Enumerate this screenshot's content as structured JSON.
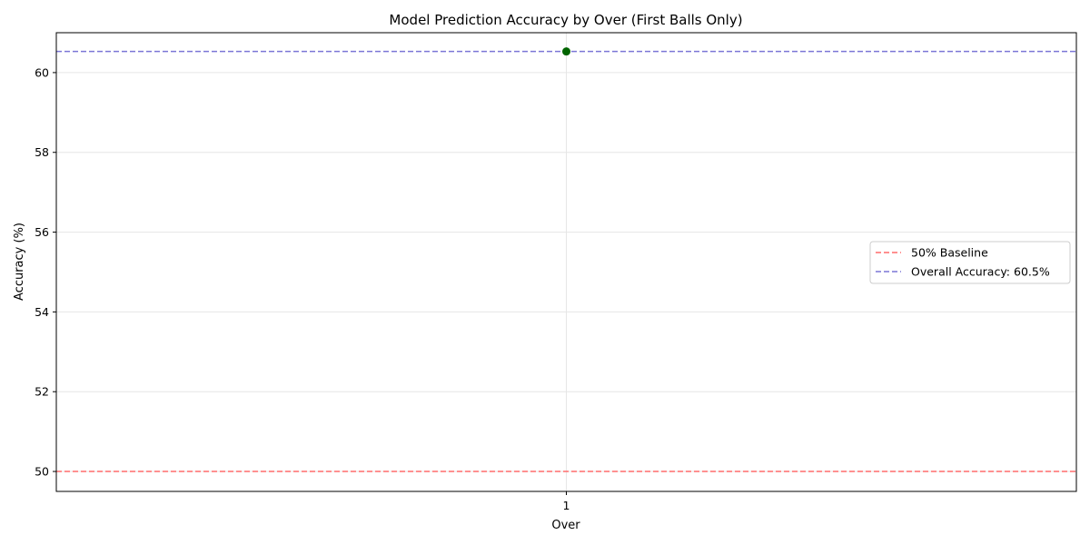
{
  "chart_data": {
    "type": "line",
    "title": "Model Prediction Accuracy by Over (First Balls Only)",
    "xlabel": "Over",
    "ylabel": "Accuracy (%)",
    "x": [
      1
    ],
    "xticks": [
      1
    ],
    "xtick_labels": [
      "1"
    ],
    "yticks": [
      50,
      52,
      54,
      56,
      58,
      60
    ],
    "ytick_labels": [
      "50",
      "52",
      "54",
      "56",
      "58",
      "60"
    ],
    "ylim": [
      49.5,
      61.0
    ],
    "grid": true,
    "series": [
      {
        "values": [
          60.53
        ],
        "color": "#006400",
        "marker": "circle"
      }
    ],
    "reference_lines": [
      {
        "name": "50% Baseline",
        "y": 50,
        "color": "#ff6b6b",
        "style": "dashed"
      },
      {
        "name": "Overall Accuracy: 60.5%",
        "y": 60.53,
        "color": "#7b76d6",
        "style": "dashed"
      }
    ],
    "legend_position": "center-right"
  }
}
